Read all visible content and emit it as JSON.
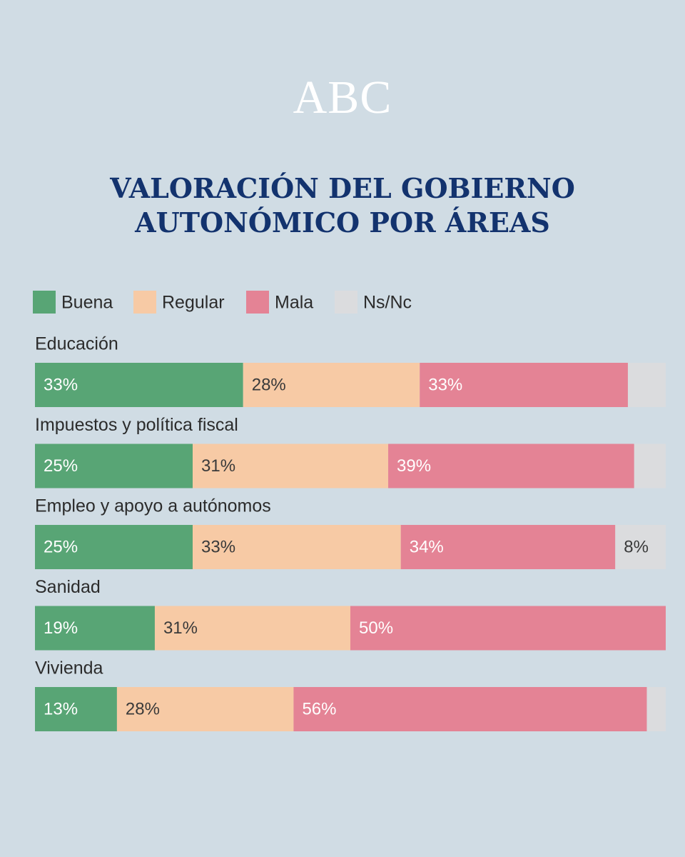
{
  "logo": "ABC",
  "title_lines": [
    "VALORACIÓN DEL GOBIERNO",
    "AUTONÓMICO POR ÁREAS"
  ],
  "colors": {
    "background": "#d0dce4",
    "title": "#13336e",
    "buena": "#58a575",
    "regular": "#f7caa5",
    "mala": "#e48395",
    "nsnc": "#dbdcde"
  },
  "chart_data": {
    "type": "bar",
    "orientation": "horizontal",
    "stacked": true,
    "title": "VALORACIÓN DEL GOBIERNO AUTONÓMICO POR ÁREAS",
    "legend_position": "top-left",
    "categories": [
      "Educación",
      "Impuestos y política fiscal",
      "Empleo y apoyo a autónomos",
      "Sanidad",
      "Vivienda"
    ],
    "series": [
      {
        "name": "Buena",
        "color": "#58a575",
        "values": [
          33,
          25,
          25,
          19,
          13
        ],
        "labels": [
          "33%",
          "25%",
          "25%",
          "19%",
          "13%"
        ]
      },
      {
        "name": "Regular",
        "color": "#f7caa5",
        "values": [
          28,
          31,
          33,
          31,
          28
        ],
        "labels": [
          "28%",
          "31%",
          "33%",
          "31%",
          "28%"
        ]
      },
      {
        "name": "Mala",
        "color": "#e48395",
        "values": [
          33,
          39,
          34,
          50,
          56
        ],
        "labels": [
          "33%",
          "39%",
          "34%",
          "50%",
          "56%"
        ]
      },
      {
        "name": "Ns/Nc",
        "color": "#dbdcde",
        "values": [
          6,
          5,
          8,
          0,
          3
        ],
        "labels": [
          "",
          "",
          "8%",
          "",
          ""
        ]
      }
    ],
    "xlim": [
      0,
      100
    ],
    "grid": false
  }
}
